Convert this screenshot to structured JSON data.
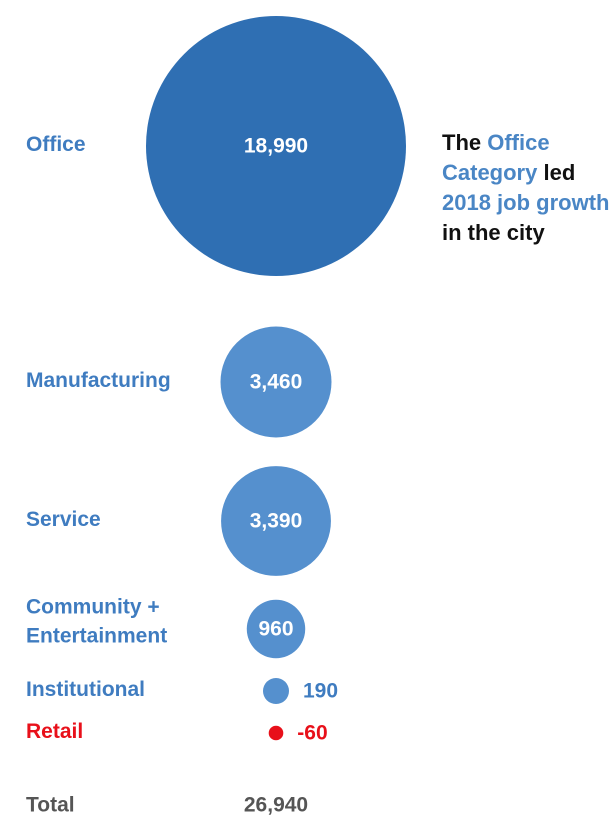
{
  "colors": {
    "office": "#2f6fb3",
    "bubble": "#5590ce",
    "label_blue": "#3f7cc0",
    "negative": "#e8101a",
    "total": "#555555",
    "annotation_text": "#111111",
    "annotation_highlight": "#4a86c5"
  },
  "chart_data": {
    "type": "bubble",
    "value_unit": "jobs",
    "categories": [
      {
        "label": "Office",
        "value": 18990,
        "display": "18,990"
      },
      {
        "label": "Manufacturing",
        "value": 3460,
        "display": "3,460"
      },
      {
        "label": "Service",
        "value": 3390,
        "display": "3,390"
      },
      {
        "label": "Community + Entertainment",
        "label_lines": [
          "Community +",
          "Entertainment"
        ],
        "value": 960,
        "display": "960"
      },
      {
        "label": "Institutional",
        "value": 190,
        "display": "190"
      },
      {
        "label": "Retail",
        "value": -60,
        "display": "-60"
      }
    ],
    "total": {
      "label": "Total",
      "value": 26940,
      "display": "26,940"
    }
  },
  "annotation": {
    "parts": [
      {
        "text": "The ",
        "highlight": false
      },
      {
        "text": "Office Category",
        "highlight": true
      },
      {
        "text": " led ",
        "highlight": false
      },
      {
        "text": "2018 job growth",
        "highlight": true
      },
      {
        "text": " in the city",
        "highlight": false
      }
    ]
  }
}
